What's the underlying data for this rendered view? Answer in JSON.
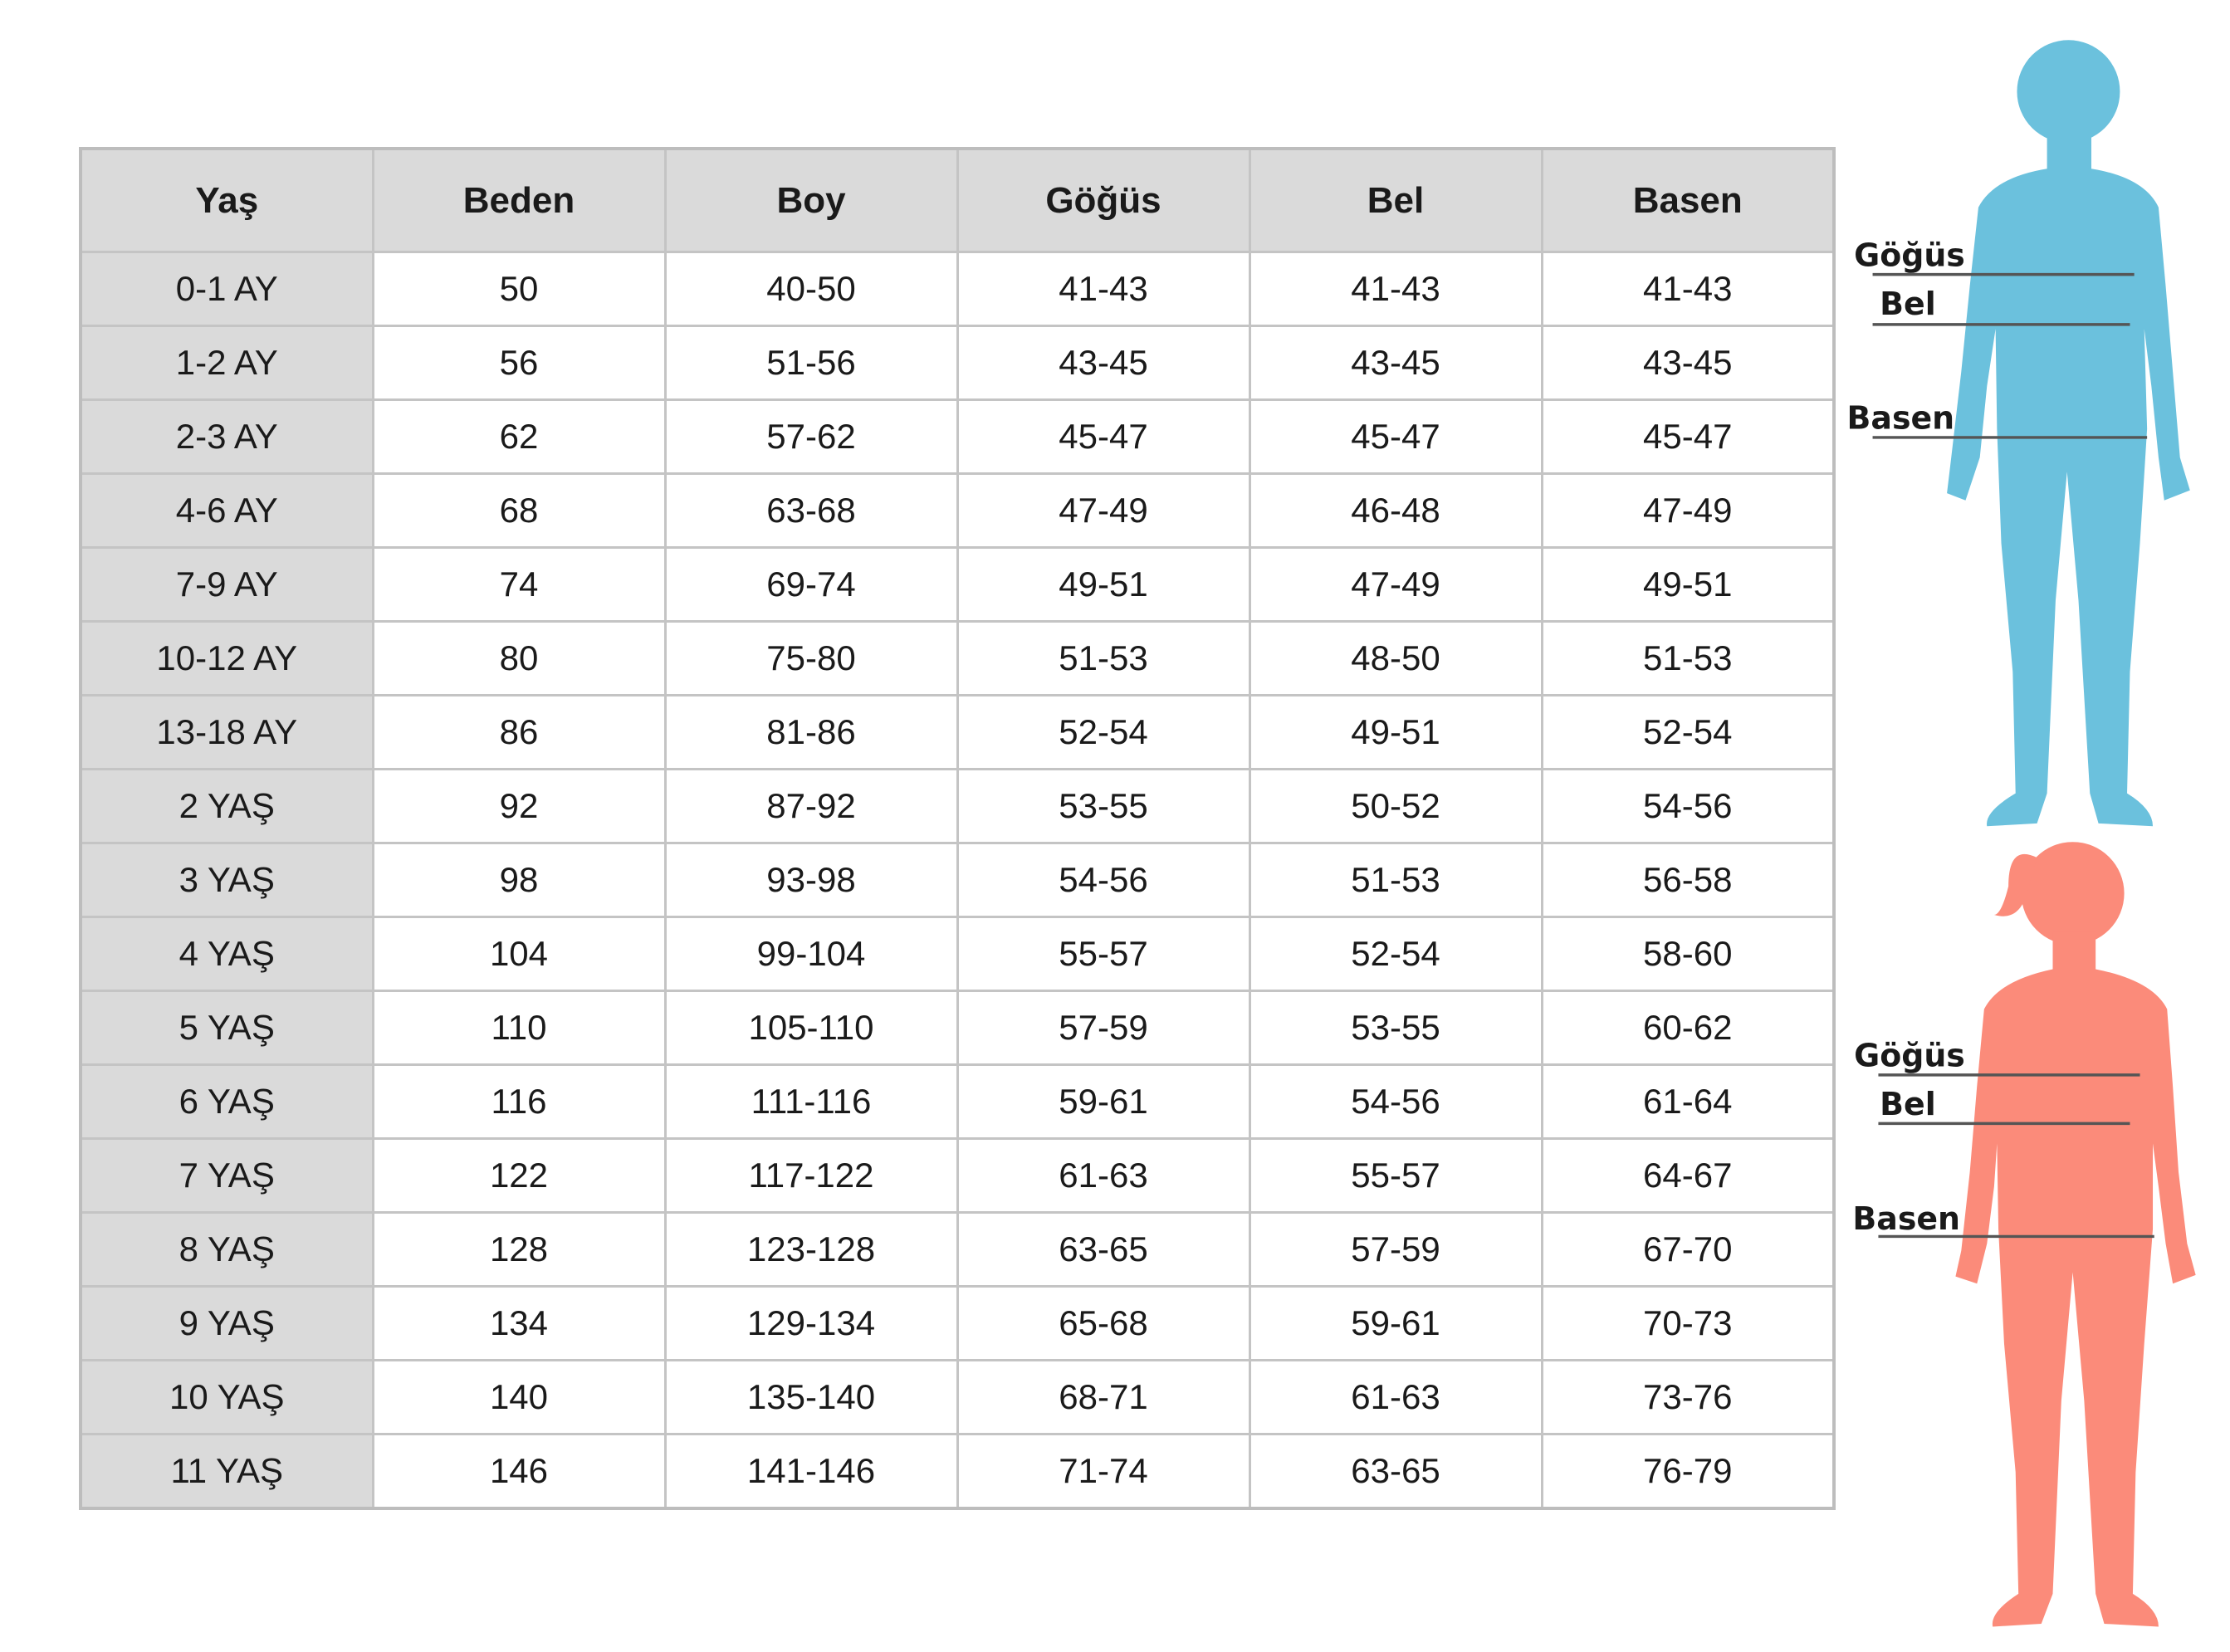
{
  "table": {
    "headers": [
      "Yaş",
      "Beden",
      "Boy",
      "Göğüs",
      "Bel",
      "Basen"
    ],
    "rows": [
      [
        "0-1 AY",
        "50",
        "40-50",
        "41-43",
        "41-43",
        "41-43"
      ],
      [
        "1-2 AY",
        "56",
        "51-56",
        "43-45",
        "43-45",
        "43-45"
      ],
      [
        "2-3 AY",
        "62",
        "57-62",
        "45-47",
        "45-47",
        "45-47"
      ],
      [
        "4-6 AY",
        "68",
        "63-68",
        "47-49",
        "46-48",
        "47-49"
      ],
      [
        "7-9 AY",
        "74",
        "69-74",
        "49-51",
        "47-49",
        "49-51"
      ],
      [
        "10-12 AY",
        "80",
        "75-80",
        "51-53",
        "48-50",
        "51-53"
      ],
      [
        "13-18 AY",
        "86",
        "81-86",
        "52-54",
        "49-51",
        "52-54"
      ],
      [
        "2 YAŞ",
        "92",
        "87-92",
        "53-55",
        "50-52",
        "54-56"
      ],
      [
        "3 YAŞ",
        "98",
        "93-98",
        "54-56",
        "51-53",
        "56-58"
      ],
      [
        "4 YAŞ",
        "104",
        "99-104",
        "55-57",
        "52-54",
        "58-60"
      ],
      [
        "5 YAŞ",
        "110",
        "105-110",
        "57-59",
        "53-55",
        "60-62"
      ],
      [
        "6 YAŞ",
        "116",
        "111-116",
        "59-61",
        "54-56",
        "61-64"
      ],
      [
        "7 YAŞ",
        "122",
        "117-122",
        "61-63",
        "55-57",
        "64-67"
      ],
      [
        "8 YAŞ",
        "128",
        "123-128",
        "63-65",
        "57-59",
        "67-70"
      ],
      [
        "9 YAŞ",
        "134",
        "129-134",
        "65-68",
        "59-61",
        "70-73"
      ],
      [
        "10 YAŞ",
        "140",
        "135-140",
        "68-71",
        "61-63",
        "73-76"
      ],
      [
        "11 YAŞ",
        "146",
        "141-146",
        "71-74",
        "63-65",
        "76-79"
      ]
    ]
  },
  "figures": {
    "boy": {
      "color": "#6bc1dd",
      "labels": {
        "chest": "Göğüs",
        "waist": "Bel",
        "hip": "Basen"
      }
    },
    "girl": {
      "color": "#fb8b7a",
      "labels": {
        "chest": "Göğüs",
        "waist": "Bel",
        "hip": "Basen"
      }
    },
    "line_color": "#555555"
  }
}
